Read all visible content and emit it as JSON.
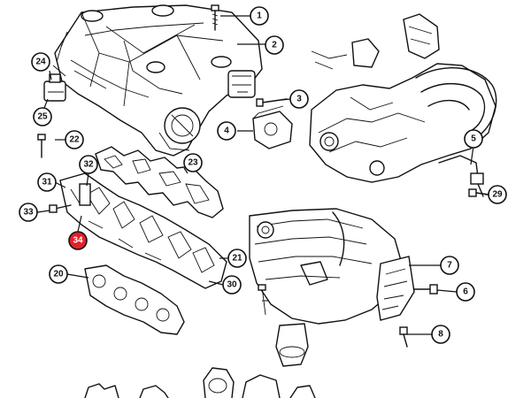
{
  "diagram": {
    "callouts": [
      {
        "id": "1",
        "label": "1"
      },
      {
        "id": "2",
        "label": "2"
      },
      {
        "id": "3",
        "label": "3"
      },
      {
        "id": "4",
        "label": "4"
      },
      {
        "id": "5",
        "label": "5"
      },
      {
        "id": "6",
        "label": "6"
      },
      {
        "id": "7",
        "label": "7"
      },
      {
        "id": "8",
        "label": "8"
      },
      {
        "id": "20",
        "label": "20"
      },
      {
        "id": "21",
        "label": "21"
      },
      {
        "id": "22",
        "label": "22"
      },
      {
        "id": "23",
        "label": "23"
      },
      {
        "id": "24",
        "label": "24"
      },
      {
        "id": "25",
        "label": "25"
      },
      {
        "id": "29",
        "label": "29"
      },
      {
        "id": "30",
        "label": "30"
      },
      {
        "id": "31",
        "label": "31"
      },
      {
        "id": "32",
        "label": "32"
      },
      {
        "id": "33",
        "label": "33"
      },
      {
        "id": "34",
        "label": "34",
        "highlighted": true
      }
    ],
    "highlight_color": "#e0222a"
  }
}
